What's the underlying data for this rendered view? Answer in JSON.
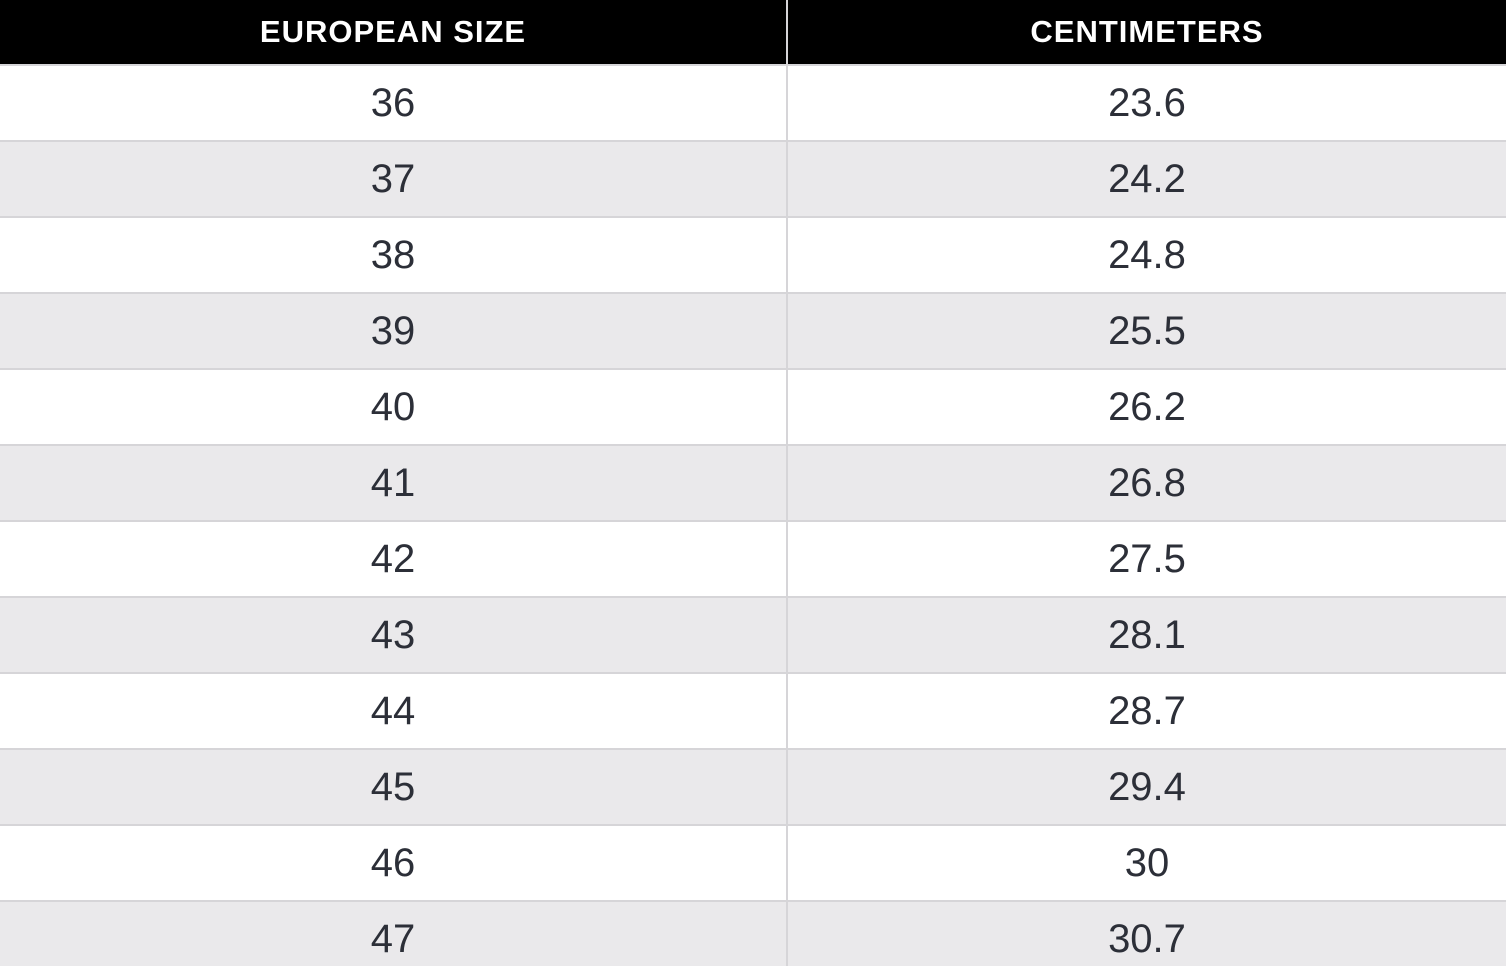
{
  "size_chart": {
    "columns": [
      {
        "id": "eu",
        "label": "EUROPEAN SIZE"
      },
      {
        "id": "cm",
        "label": "CENTIMETERS"
      }
    ],
    "rows": [
      {
        "eu": "36",
        "cm": "23.6"
      },
      {
        "eu": "37",
        "cm": "24.2"
      },
      {
        "eu": "38",
        "cm": "24.8"
      },
      {
        "eu": "39",
        "cm": "25.5"
      },
      {
        "eu": "40",
        "cm": "26.2"
      },
      {
        "eu": "41",
        "cm": "26.8"
      },
      {
        "eu": "42",
        "cm": "27.5"
      },
      {
        "eu": "43",
        "cm": "28.1"
      },
      {
        "eu": "44",
        "cm": "28.7"
      },
      {
        "eu": "45",
        "cm": "29.4"
      },
      {
        "eu": "46",
        "cm": "30"
      },
      {
        "eu": "47",
        "cm": "30.7"
      }
    ]
  },
  "chart_data": {
    "type": "table",
    "columns": [
      "EUROPEAN SIZE",
      "CENTIMETERS"
    ],
    "rows": [
      [
        36,
        23.6
      ],
      [
        37,
        24.2
      ],
      [
        38,
        24.8
      ],
      [
        39,
        25.5
      ],
      [
        40,
        26.2
      ],
      [
        41,
        26.8
      ],
      [
        42,
        27.5
      ],
      [
        43,
        28.1
      ],
      [
        44,
        28.7
      ],
      [
        45,
        29.4
      ],
      [
        46,
        30
      ],
      [
        47,
        30.7
      ]
    ]
  },
  "colors": {
    "header_bg": "#000000",
    "header_text": "#ffffff",
    "row_bg": "#ffffff",
    "row_alt_bg": "#eae9eb",
    "divider": "#d6d5d8",
    "cell_text": "#2c2f38"
  }
}
